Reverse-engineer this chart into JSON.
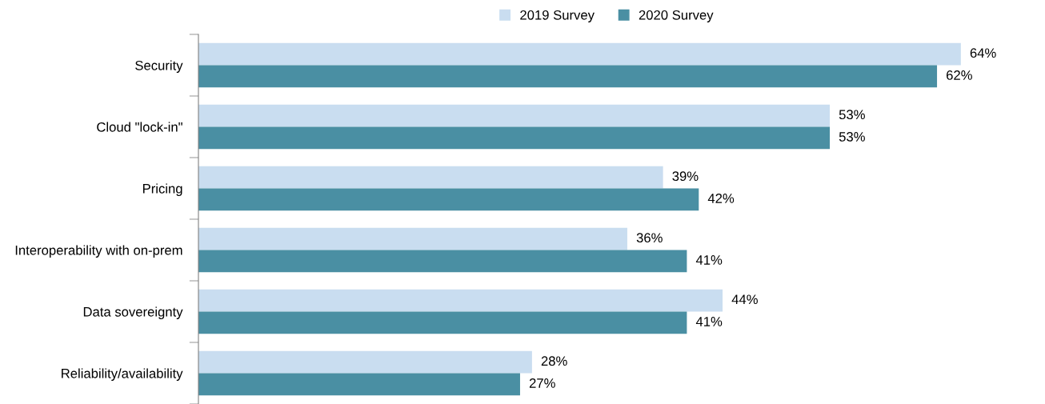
{
  "chart_data": {
    "type": "bar",
    "orientation": "horizontal",
    "categories": [
      "Security",
      "Cloud \"lock-in\"",
      "Pricing",
      "Interoperability with on-prem",
      "Data sovereignty",
      "Reliability/availability"
    ],
    "series": [
      {
        "name": "2019 Survey",
        "color": "#c9ddf0",
        "values": [
          64,
          53,
          39,
          36,
          44,
          28
        ],
        "value_labels": [
          "64%",
          "53%",
          "39%",
          "36%",
          "44%",
          "28%"
        ]
      },
      {
        "name": "2020 Survey",
        "color": "#4a8fa3",
        "values": [
          62,
          53,
          42,
          41,
          41,
          27
        ],
        "value_labels": [
          "62%",
          "53%",
          "42%",
          "41%",
          "41%",
          "27%"
        ]
      }
    ],
    "legend": "top"
  }
}
